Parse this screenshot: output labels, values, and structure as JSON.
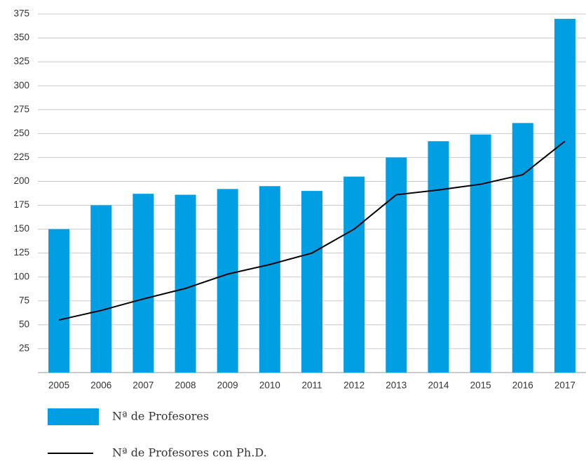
{
  "chart_data": {
    "type": "bar",
    "categories": [
      "2005",
      "2006",
      "2007",
      "2008",
      "2009",
      "2010",
      "2011",
      "2012",
      "2013",
      "2014",
      "2015",
      "2016",
      "2017"
    ],
    "series": [
      {
        "name": "Nª de Profesores",
        "type": "bar",
        "color": "#009fe3",
        "values": [
          150,
          175,
          187,
          186,
          192,
          195,
          190,
          205,
          225,
          242,
          249,
          261,
          370
        ]
      },
      {
        "name": "Nª de Profesores con Ph.D.",
        "type": "line",
        "color": "#000000",
        "values": [
          55,
          65,
          77,
          88,
          103,
          113,
          125,
          150,
          186,
          191,
          197,
          207,
          242
        ]
      }
    ],
    "ylim": [
      0,
      375
    ],
    "yticks": [
      25,
      50,
      75,
      100,
      125,
      150,
      175,
      200,
      225,
      250,
      275,
      300,
      325,
      350,
      375
    ],
    "grid": true
  }
}
